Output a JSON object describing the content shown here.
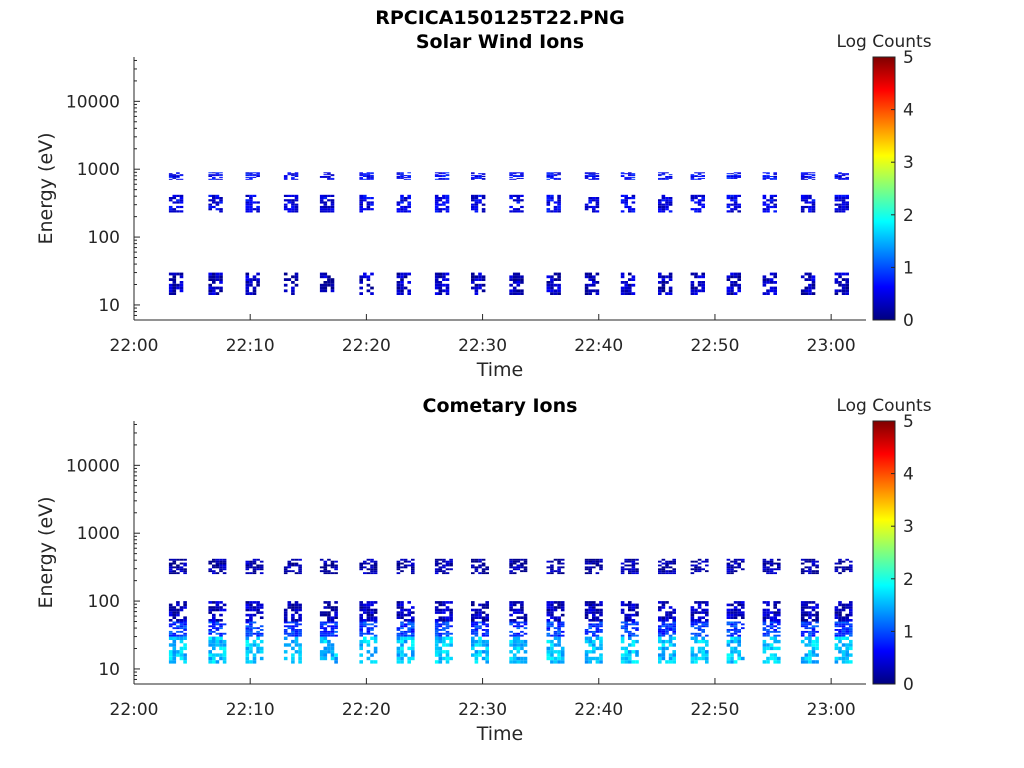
{
  "figure_title": "RPCICA150125T22.PNG",
  "chart_data": [
    {
      "type": "heatmap",
      "title": "Solar Wind Ions",
      "xlabel": "Time",
      "ylabel": "Energy (eV)",
      "x_ticks": [
        "22:00",
        "22:10",
        "22:20",
        "22:30",
        "22:40",
        "22:50",
        "23:00"
      ],
      "x_tick_minutes": [
        0,
        10,
        20,
        30,
        40,
        50,
        60
      ],
      "xlim_minutes": [
        0,
        63
      ],
      "y_scale": "log",
      "ylim": [
        6,
        45000
      ],
      "y_ticks": [
        10,
        100,
        1000,
        10000
      ],
      "y_tick_labels": [
        "10",
        "100",
        "1000",
        "10000"
      ],
      "colorbar": {
        "label": "Log Counts",
        "ticks": [
          "0",
          "1",
          "2",
          "3",
          "4",
          "5"
        ],
        "range": [
          0,
          5
        ],
        "colormap": "jet"
      },
      "sweep_starts_minutes": [
        3.0,
        6.4,
        9.6,
        12.9,
        16.0,
        19.4,
        22.6,
        25.9,
        29.0,
        32.3,
        35.5,
        38.8,
        41.9,
        45.1,
        47.9,
        51.0,
        54.1,
        57.4,
        60.3
      ],
      "sweep_width_minutes": 1.2,
      "energy_bands": [
        {
          "e_min": 14,
          "e_max": 30,
          "log_counts": 0.3
        },
        {
          "e_min": 230,
          "e_max": 420,
          "log_counts": 0.5
        },
        {
          "e_min": 700,
          "e_max": 900,
          "log_counts": 0.6
        }
      ]
    },
    {
      "type": "heatmap",
      "title": "Cometary Ions",
      "xlabel": "Time",
      "ylabel": "Energy (eV)",
      "x_ticks": [
        "22:00",
        "22:10",
        "22:20",
        "22:30",
        "22:40",
        "22:50",
        "23:00"
      ],
      "x_tick_minutes": [
        0,
        10,
        20,
        30,
        40,
        50,
        60
      ],
      "xlim_minutes": [
        0,
        63
      ],
      "y_scale": "log",
      "ylim": [
        6,
        45000
      ],
      "y_ticks": [
        10,
        100,
        1000,
        10000
      ],
      "y_tick_labels": [
        "10",
        "100",
        "1000",
        "10000"
      ],
      "colorbar": {
        "label": "Log Counts",
        "ticks": [
          "0",
          "1",
          "2",
          "3",
          "4",
          "5"
        ],
        "range": [
          0,
          5
        ],
        "colormap": "jet"
      },
      "sweep_starts_minutes": [
        3.0,
        6.4,
        9.6,
        12.9,
        16.0,
        19.4,
        22.6,
        25.9,
        29.0,
        32.3,
        35.5,
        38.8,
        41.9,
        45.1,
        47.9,
        51.0,
        54.1,
        57.4,
        60.3
      ],
      "sweep_width_minutes": 1.4,
      "energy_bands": [
        {
          "e_min": 12,
          "e_max": 30,
          "log_counts": 1.6
        },
        {
          "e_min": 30,
          "e_max": 50,
          "log_counts": 0.9
        },
        {
          "e_min": 50,
          "e_max": 100,
          "log_counts": 0.3
        },
        {
          "e_min": 250,
          "e_max": 420,
          "log_counts": 0.2
        }
      ]
    }
  ]
}
